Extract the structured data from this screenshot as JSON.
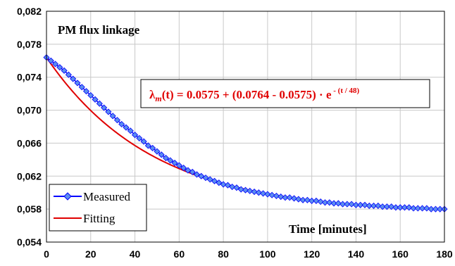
{
  "chart_data": {
    "type": "line",
    "title": "PM flux linkage",
    "xlabel": "Time [minutes]",
    "ylabel": "",
    "xlim": [
      0,
      180
    ],
    "ylim": [
      0.054,
      0.082
    ],
    "x_ticks": [
      "0",
      "20",
      "40",
      "60",
      "80",
      "100",
      "120",
      "140",
      "160",
      "180"
    ],
    "y_ticks": [
      "0,054",
      "0,058",
      "0,062",
      "0,066",
      "0,070",
      "0,074",
      "0,078",
      "0,082"
    ],
    "grid": true,
    "legend_placement": "bottom-left",
    "annotation": {
      "lambda": "λ",
      "sub": "m",
      "arg": "(t) = 0.0575 + (0.0764 - 0.0575) · e",
      "sup": " - (t / 48)"
    },
    "series": [
      {
        "name": "Measured",
        "color": "#0000ff",
        "marker_color": "#5b8def",
        "marker": "diamond",
        "x": [
          0,
          2,
          4,
          6,
          8,
          10,
          12,
          14,
          16,
          18,
          20,
          22,
          24,
          26,
          28,
          30,
          32,
          34,
          36,
          38,
          40,
          42,
          44,
          46,
          48,
          50,
          52,
          54,
          56,
          58,
          60,
          62,
          64,
          66,
          68,
          70,
          72,
          74,
          76,
          78,
          80,
          82,
          84,
          86,
          88,
          90,
          92,
          94,
          96,
          98,
          100,
          102,
          104,
          106,
          108,
          110,
          112,
          114,
          116,
          118,
          120,
          122,
          124,
          126,
          128,
          130,
          132,
          134,
          136,
          138,
          140,
          142,
          144,
          146,
          148,
          150,
          152,
          154,
          156,
          158,
          160,
          162,
          164,
          166,
          168,
          170,
          172,
          174,
          176,
          178,
          180
        ],
        "y": [
          0.0764,
          0.076,
          0.0756,
          0.0752,
          0.0748,
          0.0743,
          0.0738,
          0.0733,
          0.0728,
          0.0723,
          0.0718,
          0.0713,
          0.0708,
          0.0703,
          0.0698,
          0.0693,
          0.0688,
          0.0683,
          0.0679,
          0.0675,
          0.067,
          0.0666,
          0.0662,
          0.0657,
          0.0654,
          0.065,
          0.0646,
          0.0642,
          0.0639,
          0.0636,
          0.0633,
          0.063,
          0.0627,
          0.0625,
          0.0622,
          0.062,
          0.0618,
          0.0616,
          0.0614,
          0.0612,
          0.061,
          0.0609,
          0.0607,
          0.0606,
          0.0604,
          0.0603,
          0.0602,
          0.0601,
          0.06,
          0.0599,
          0.0598,
          0.0597,
          0.0596,
          0.0595,
          0.0594,
          0.0594,
          0.0593,
          0.0592,
          0.0591,
          0.0591,
          0.059,
          0.059,
          0.0589,
          0.0588,
          0.0588,
          0.0587,
          0.0587,
          0.0586,
          0.0586,
          0.0586,
          0.0585,
          0.0585,
          0.0585,
          0.0584,
          0.0584,
          0.0584,
          0.0583,
          0.0583,
          0.0583,
          0.0582,
          0.0582,
          0.0582,
          0.0582,
          0.0581,
          0.0581,
          0.0581,
          0.0581,
          0.058,
          0.058,
          0.058,
          0.058
        ]
      },
      {
        "name": "Fitting",
        "color": "#e00000",
        "formula": {
          "a": 0.0575,
          "b": 0.0764,
          "tau": 48
        }
      }
    ]
  }
}
